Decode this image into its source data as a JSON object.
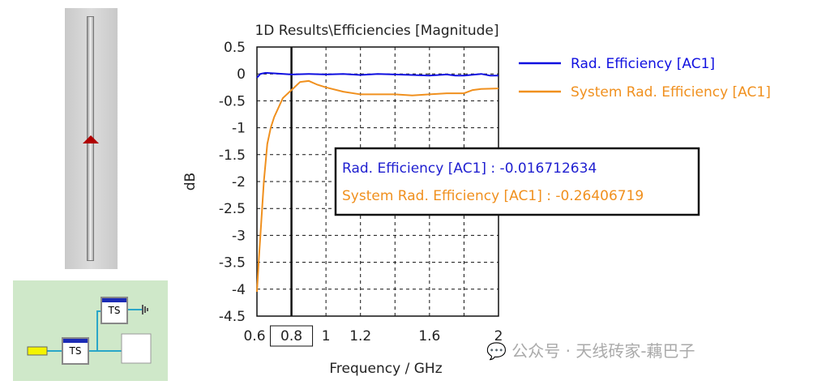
{
  "schematic": {
    "block1_label": "TS",
    "block2_label": "TS"
  },
  "watermark": "公众号 · 天线砖家-藕巴子",
  "marker": {
    "x": 0.8,
    "label": "0.8"
  },
  "tooltip": {
    "line1": "Rad. Efficiency [AC1] : -0.016712634",
    "line2": "System Rad. Efficiency [AC1] : -0.26406719"
  },
  "chart_data": {
    "type": "line",
    "title": "1D Results\\Efficiencies [Magnitude]",
    "xlabel": "Frequency / GHz",
    "ylabel": "dB",
    "xlim": [
      0.6,
      2
    ],
    "ylim": [
      -4.5,
      0.5
    ],
    "xticks": [
      "0.6",
      "1",
      "1.2",
      "1.6",
      "2"
    ],
    "yticks": [
      "0.5",
      "0",
      "-0.5",
      "-1",
      "-1.5",
      "-2",
      "-2.5",
      "-3",
      "-3.5",
      "-4",
      "-4.5"
    ],
    "grid": true,
    "legend": "top-right outside",
    "series": [
      {
        "name": "Rad. Efficiency [AC1]",
        "color": "#1010e0",
        "x": [
          0.6,
          0.62,
          0.65,
          0.7,
          0.8,
          0.9,
          1.0,
          1.1,
          1.2,
          1.3,
          1.4,
          1.5,
          1.6,
          1.7,
          1.75,
          1.8,
          1.9,
          1.95,
          2.0
        ],
        "y": [
          -0.07,
          0.0,
          0.02,
          0.01,
          -0.01,
          0.0,
          -0.01,
          0.0,
          -0.02,
          0.0,
          -0.01,
          -0.02,
          -0.03,
          -0.01,
          -0.03,
          -0.03,
          0.0,
          -0.03,
          -0.03
        ]
      },
      {
        "name": "System Rad. Efficiency [AC1]",
        "color": "#f0901e",
        "x": [
          0.6,
          0.61,
          0.62,
          0.64,
          0.66,
          0.68,
          0.7,
          0.75,
          0.8,
          0.85,
          0.9,
          0.95,
          1.0,
          1.1,
          1.2,
          1.3,
          1.4,
          1.5,
          1.6,
          1.7,
          1.8,
          1.85,
          1.9,
          2.0
        ],
        "y": [
          -4.05,
          -3.5,
          -3.0,
          -2.0,
          -1.3,
          -1.0,
          -0.8,
          -0.45,
          -0.3,
          -0.15,
          -0.13,
          -0.2,
          -0.25,
          -0.33,
          -0.38,
          -0.38,
          -0.38,
          -0.4,
          -0.38,
          -0.36,
          -0.36,
          -0.3,
          -0.28,
          -0.27
        ]
      }
    ]
  }
}
